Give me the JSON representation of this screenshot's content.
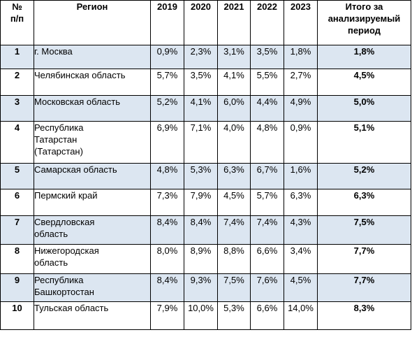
{
  "table": {
    "headers": {
      "num": [
        "№",
        "п/п"
      ],
      "region": "Регион",
      "years": [
        "2019",
        "2020",
        "2021",
        "2022",
        "2023"
      ],
      "total": [
        "Итого за",
        "анализируемый",
        "период"
      ]
    },
    "rows": [
      {
        "num": "1",
        "region": [
          "г. Москва"
        ],
        "values": [
          "0,9%",
          "2,3%",
          "3,1%",
          "3,5%",
          "1,8%"
        ],
        "total": "1,8%"
      },
      {
        "num": "2",
        "region": [
          "Челябинская область"
        ],
        "values": [
          "5,7%",
          "3,5%",
          "4,1%",
          "5,5%",
          "2,7%"
        ],
        "total": "4,5%"
      },
      {
        "num": "3",
        "region": [
          "Московская область"
        ],
        "values": [
          "5,2%",
          "4,1%",
          "6,0%",
          "4,4%",
          "4,9%"
        ],
        "total": "5,0%"
      },
      {
        "num": "4",
        "region": [
          "Республика",
          "Татарстан",
          "(Татарстан)"
        ],
        "values": [
          "6,9%",
          "7,1%",
          "4,0%",
          "4,8%",
          "0,9%"
        ],
        "total": "5,1%"
      },
      {
        "num": "5",
        "region": [
          "Самарская область"
        ],
        "values": [
          "4,8%",
          "5,3%",
          "6,3%",
          "6,7%",
          "1,6%"
        ],
        "total": "5,2%"
      },
      {
        "num": "6",
        "region": [
          "Пермский край"
        ],
        "values": [
          "7,3%",
          "7,9%",
          "4,5%",
          "5,7%",
          "6,3%"
        ],
        "total": "6,3%"
      },
      {
        "num": "7",
        "region": [
          "Свердловская",
          "область"
        ],
        "values": [
          "8,4%",
          "8,4%",
          "7,4%",
          "7,4%",
          "4,3%"
        ],
        "total": "7,5%"
      },
      {
        "num": "8",
        "region": [
          "Нижегородская",
          "область"
        ],
        "values": [
          "8,0%",
          "8,9%",
          "8,8%",
          "6,6%",
          "3,4%"
        ],
        "total": "7,7%"
      },
      {
        "num": "9",
        "region": [
          "Республика",
          "Башкортостан"
        ],
        "values": [
          "8,4%",
          "9,3%",
          "7,5%",
          "7,6%",
          "4,5%"
        ],
        "total": "7,7%"
      },
      {
        "num": "10",
        "region": [
          "Тульская область"
        ],
        "values": [
          "7,9%",
          "10,0%",
          "5,3%",
          "6,6%",
          "14,0%"
        ],
        "total": "8,3%"
      }
    ]
  },
  "colors": {
    "shaded_row": "#dce6f1",
    "border": "#000000"
  }
}
